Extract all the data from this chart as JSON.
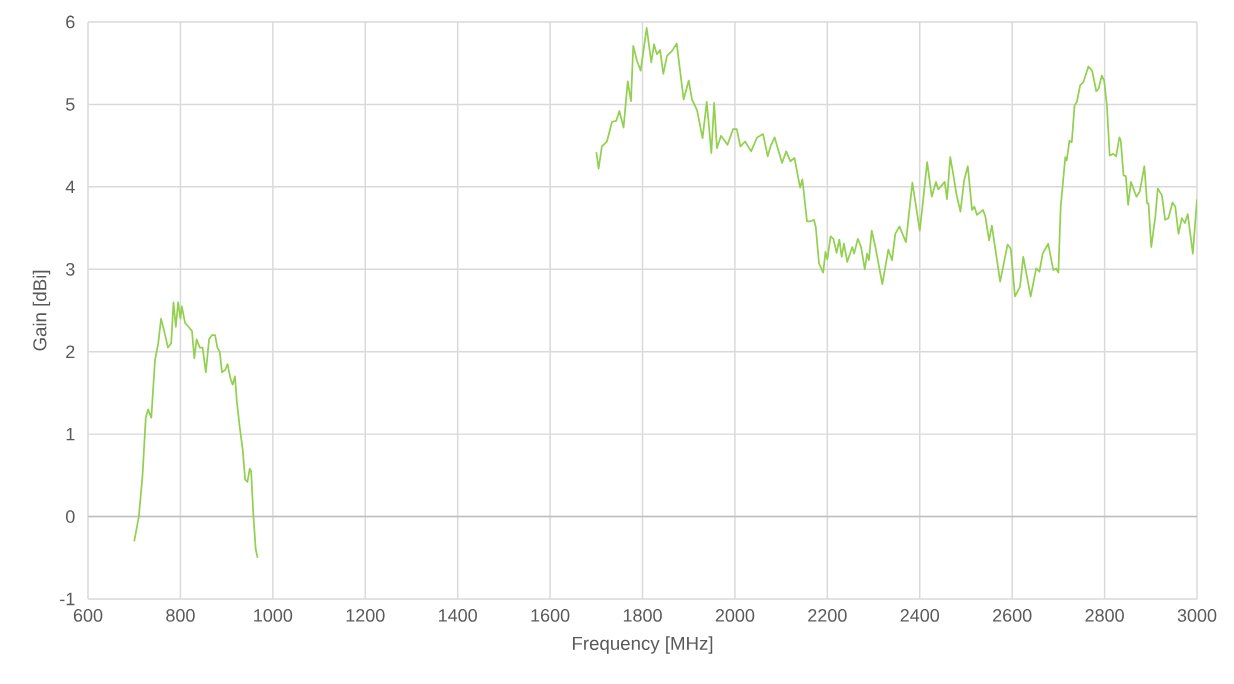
{
  "chart_data": {
    "type": "line",
    "xlabel": "Frequency [MHz]",
    "ylabel": "Gain [dBi]",
    "xlim": [
      600,
      3000
    ],
    "ylim": [
      -1,
      6
    ],
    "xticks": [
      600,
      800,
      1000,
      1200,
      1400,
      1600,
      1800,
      2000,
      2200,
      2400,
      2600,
      2800,
      3000
    ],
    "yticks": [
      -1,
      0,
      1,
      2,
      3,
      4,
      5,
      6
    ],
    "grid": true,
    "marker": "none",
    "line_style": "solid",
    "series": [
      {
        "color": "#92d050",
        "x": [
          700,
          710,
          718,
          725,
          730,
          737,
          745,
          752,
          758,
          765,
          773,
          780,
          785,
          790,
          795,
          800,
          803,
          810,
          818,
          825,
          830,
          835,
          842,
          848,
          855,
          862,
          868,
          875,
          880,
          885,
          890,
          897,
          902,
          908,
          913,
          918,
          922,
          928,
          935,
          940,
          945,
          950,
          953,
          958,
          963,
          967
        ],
        "values": [
          -0.3,
          0.0,
          0.5,
          1.2,
          1.3,
          1.2,
          1.9,
          2.1,
          2.4,
          2.25,
          2.05,
          2.1,
          2.6,
          2.3,
          2.6,
          2.4,
          2.55,
          2.35,
          2.3,
          2.25,
          1.92,
          2.15,
          2.05,
          2.05,
          1.75,
          2.15,
          2.2,
          2.2,
          2.05,
          2.0,
          1.75,
          1.78,
          1.85,
          1.68,
          1.6,
          1.7,
          1.4,
          1.1,
          0.8,
          0.45,
          0.42,
          0.58,
          0.55,
          0.0,
          -0.4,
          -0.5
        ]
      },
      {
        "color": "#92d050",
        "x": [
          1700,
          1705,
          1712,
          1723,
          1734,
          1743,
          1750,
          1759,
          1768,
          1775,
          1780,
          1788,
          1796,
          1809,
          1819,
          1825,
          1831,
          1838,
          1845,
          1853,
          1864,
          1874,
          1889,
          1900,
          1907,
          1918,
          1930,
          1939,
          1949,
          1955,
          1961,
          1970,
          1984,
          1996,
          2004,
          2012,
          2022,
          2035,
          2048,
          2061,
          2071,
          2077,
          2086,
          2102,
          2111,
          2120,
          2129,
          2141,
          2146,
          2156,
          2163,
          2171,
          2175,
          2182,
          2191,
          2196,
          2200,
          2207,
          2213,
          2220,
          2226,
          2231,
          2236,
          2243,
          2254,
          2258,
          2266,
          2273,
          2281,
          2286,
          2290,
          2296,
          2304,
          2319,
          2332,
          2340,
          2347,
          2356,
          2370,
          2384,
          2400,
          2407,
          2416,
          2426,
          2435,
          2440,
          2454,
          2459,
          2466,
          2472,
          2479,
          2488,
          2496,
          2504,
          2513,
          2518,
          2524,
          2537,
          2542,
          2550,
          2556,
          2574,
          2590,
          2597,
          2606,
          2617,
          2624,
          2632,
          2640,
          2652,
          2659,
          2666,
          2678,
          2689,
          2695,
          2700,
          2705,
          2715,
          2718,
          2724,
          2729,
          2735,
          2740,
          2747,
          2754,
          2765,
          2773,
          2782,
          2787,
          2794,
          2799,
          2805,
          2811,
          2819,
          2825,
          2832,
          2835,
          2841,
          2846,
          2851,
          2857,
          2869,
          2876,
          2886,
          2892,
          2895,
          2901,
          2910,
          2915,
          2924,
          2931,
          2938,
          2947,
          2953,
          2960,
          2967,
          2974,
          2980,
          2991,
          3000
        ],
        "values": [
          4.42,
          4.22,
          4.49,
          4.55,
          4.79,
          4.8,
          4.92,
          4.72,
          5.28,
          5.04,
          5.71,
          5.53,
          5.41,
          5.93,
          5.51,
          5.73,
          5.61,
          5.66,
          5.37,
          5.59,
          5.65,
          5.74,
          5.06,
          5.29,
          5.06,
          4.93,
          4.59,
          5.03,
          4.41,
          5.02,
          4.47,
          4.62,
          4.51,
          4.7,
          4.7,
          4.49,
          4.55,
          4.43,
          4.6,
          4.64,
          4.37,
          4.49,
          4.6,
          4.29,
          4.43,
          4.31,
          4.35,
          3.99,
          4.09,
          3.58,
          3.58,
          3.6,
          3.51,
          3.07,
          2.96,
          3.21,
          3.12,
          3.4,
          3.37,
          3.2,
          3.36,
          3.15,
          3.31,
          3.09,
          3.27,
          3.19,
          3.37,
          3.27,
          3.0,
          3.19,
          3.11,
          3.47,
          3.27,
          2.82,
          3.24,
          3.11,
          3.43,
          3.52,
          3.33,
          4.05,
          3.47,
          3.82,
          4.3,
          3.88,
          4.06,
          3.97,
          4.06,
          3.85,
          4.36,
          4.17,
          3.92,
          3.7,
          4.08,
          4.25,
          3.72,
          3.76,
          3.66,
          3.72,
          3.64,
          3.35,
          3.53,
          2.85,
          3.3,
          3.25,
          2.67,
          2.79,
          3.15,
          2.91,
          2.67,
          3.01,
          2.97,
          3.19,
          3.31,
          2.99,
          3.01,
          2.96,
          3.76,
          4.36,
          4.32,
          4.56,
          4.54,
          4.99,
          5.03,
          5.23,
          5.27,
          5.46,
          5.41,
          5.16,
          5.19,
          5.35,
          5.29,
          4.99,
          4.38,
          4.4,
          4.37,
          4.6,
          4.56,
          4.14,
          4.13,
          3.78,
          4.06,
          3.88,
          3.94,
          4.25,
          3.8,
          3.8,
          3.27,
          3.65,
          3.98,
          3.9,
          3.6,
          3.62,
          3.81,
          3.76,
          3.43,
          3.62,
          3.56,
          3.67,
          3.19,
          3.85
        ]
      }
    ]
  }
}
